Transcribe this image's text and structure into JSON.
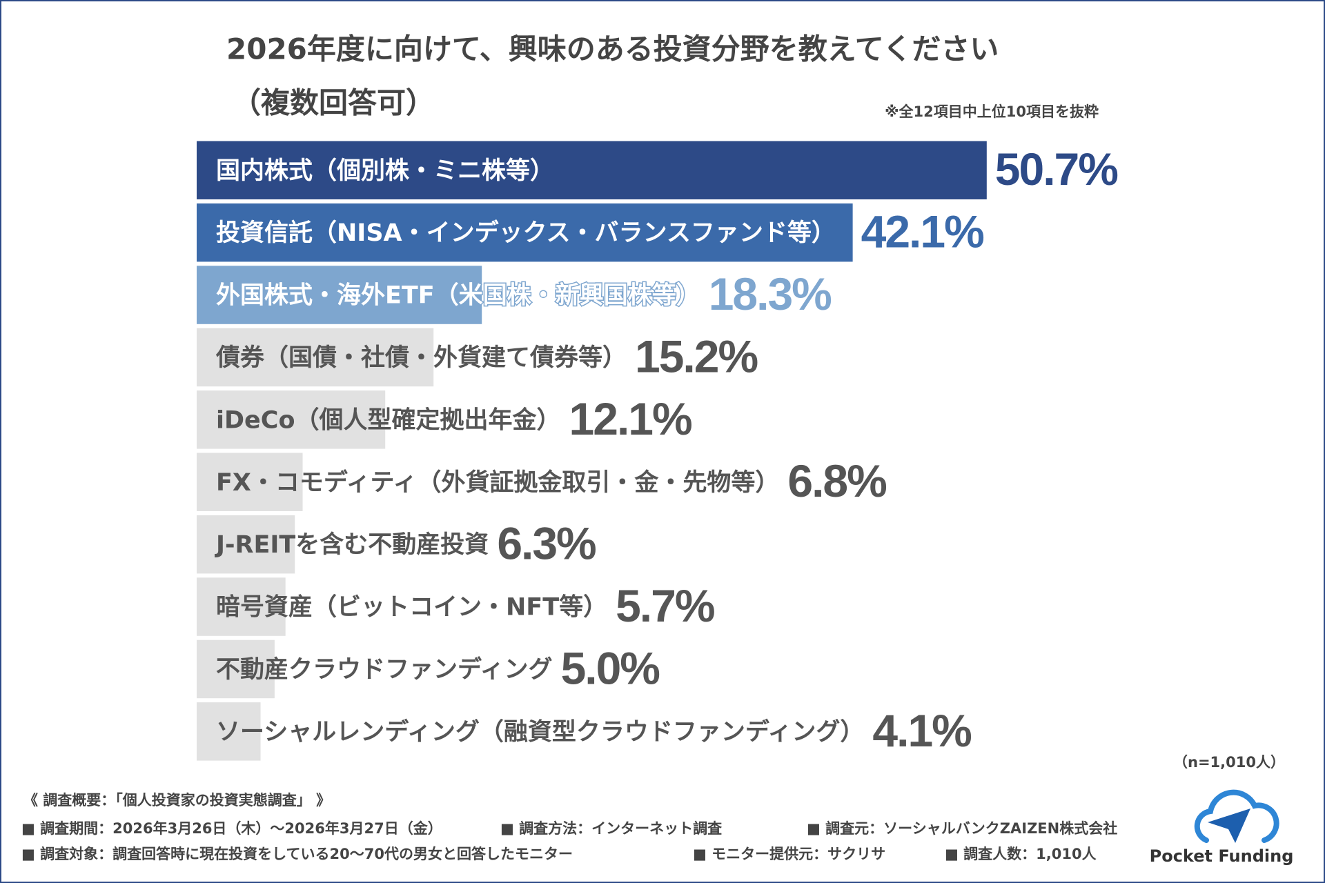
{
  "chart_data": {
    "type": "hbar",
    "title": "2026年度に向けて、興味のある投資分野を教えてください",
    "subtitle": "（複数回答可）",
    "note": "※全12項目中上位10項目を抜粋",
    "sample_note": "（n=1,010人）",
    "categories": [
      "国内株式（個別株・ミニ株等）",
      "投資信託（NISA・インデックス・バランスファンド等）",
      "外国株式・海外ETF（米国株・新興国株等）",
      "債券（国債・社債・外貨建て債券等）",
      "iDeCo（個人型確定拠出年金）",
      "FX・コモディティ（外貨証拠金取引・金・先物等）",
      "J-REITを含む不動産投資",
      "暗号資産（ビットコイン・NFT等）",
      "不動産クラウドファンディング",
      "ソーシャルレンディング（融資型クラウドファンディング）"
    ],
    "values": [
      50.7,
      42.1,
      18.3,
      15.2,
      12.1,
      6.8,
      6.3,
      5.7,
      5.0,
      4.1
    ],
    "value_labels": [
      "50.7%",
      "42.1%",
      "18.3%",
      "15.2%",
      "12.1%",
      "6.8%",
      "6.3%",
      "5.7%",
      "5.0%",
      "4.1%"
    ],
    "colors": [
      "#2d4a87",
      "#3b6aaa",
      "#7ea6cf",
      "#e1e1e1",
      "#e1e1e1",
      "#e1e1e1",
      "#e1e1e1",
      "#e1e1e1",
      "#e1e1e1",
      "#e1e1e1"
    ],
    "label_colors": [
      "#ffffff",
      "#ffffff",
      "#ffffff",
      "#555555",
      "#555555",
      "#555555",
      "#555555",
      "#555555",
      "#555555",
      "#555555"
    ],
    "value_colors": [
      "#2d4a87",
      "#3b6aaa",
      "#7ea6cf",
      "#555555",
      "#555555",
      "#555555",
      "#555555",
      "#555555",
      "#555555",
      "#555555"
    ]
  },
  "footer": {
    "heading": "《 調査概要：「個人投資家の投資実態調査」 》",
    "items": [
      "■ 調査期間：2026年3月26日（木）～2026年3月27日（金）",
      "■ 調査方法：インターネット調査",
      "■ 調査元：ソーシャルバンクZAIZEN株式会社",
      "■ 調査対象：調査回答時に現在投資をしている20～70代の男女と回答したモニター",
      "■ モニター提供元：サクリサ",
      "■ 調査人数：1,010人"
    ]
  },
  "logo": "Pocket Funding"
}
